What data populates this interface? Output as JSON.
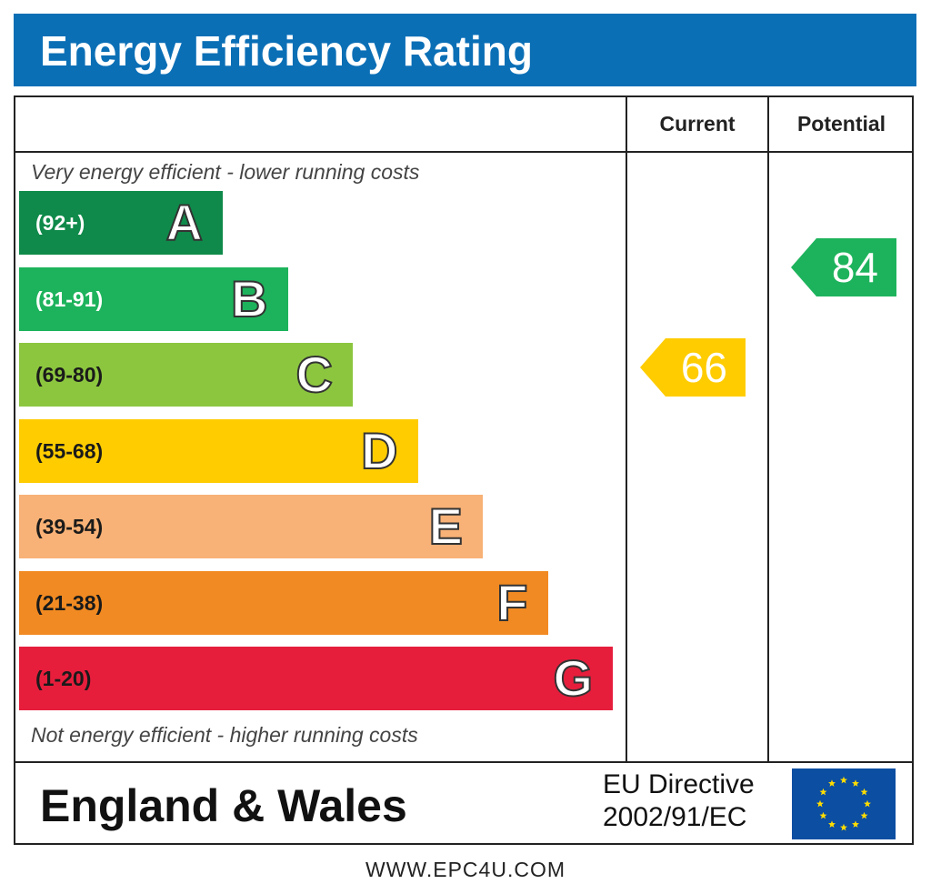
{
  "title": "Energy Efficiency Rating",
  "columns": {
    "current": "Current",
    "potential": "Potential"
  },
  "notes": {
    "top": "Very energy efficient - lower running costs",
    "bottom": "Not energy efficient - higher running costs"
  },
  "chart_data": {
    "type": "bar",
    "title": "Energy Efficiency Rating",
    "bands": [
      {
        "letter": "A",
        "range": "(92+)",
        "color": "#0f8a4a",
        "range_color": "#ffffff"
      },
      {
        "letter": "B",
        "range": "(81-91)",
        "color": "#1db35c",
        "range_color": "#ffffff"
      },
      {
        "letter": "C",
        "range": "(69-80)",
        "color": "#8cc63f",
        "range_color": "#1a1a1a"
      },
      {
        "letter": "D",
        "range": "(55-68)",
        "color": "#ffcc00",
        "range_color": "#1a1a1a"
      },
      {
        "letter": "E",
        "range": "(39-54)",
        "color": "#f8b176",
        "range_color": "#1a1a1a"
      },
      {
        "letter": "F",
        "range": "(21-38)",
        "color": "#f18a22",
        "range_color": "#1a1a1a"
      },
      {
        "letter": "G",
        "range": "(1-20)",
        "color": "#e61e3c",
        "range_color": "#1a1a1a"
      }
    ],
    "current": {
      "value": 66,
      "band": "D",
      "color": "#ffcc00"
    },
    "potential": {
      "value": 84,
      "band": "B",
      "color": "#1db35c"
    }
  },
  "footer": {
    "region": "England & Wales",
    "directive_line1": "EU Directive",
    "directive_line2": "2002/91/EC",
    "flag_icon": "eu-flag-icon",
    "website": "WWW.EPC4U.COM"
  }
}
